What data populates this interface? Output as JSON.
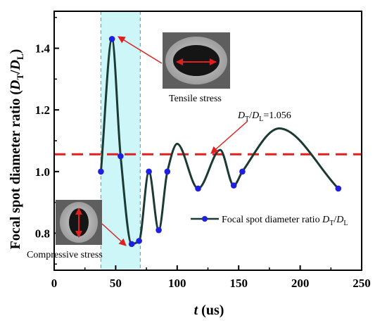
{
  "chart_data": {
    "type": "line",
    "xlabel": {
      "var": "t",
      "unit": " (us)"
    },
    "ylabel": {
      "main": "Focal spot diameter ratio (",
      "var1": "D",
      "sub1": "T",
      "slash": "/",
      "var2": "D",
      "sub2": "L",
      "close": ")"
    },
    "xlim": [
      0,
      250
    ],
    "ylim": [
      0.68,
      1.52
    ],
    "xticks": [
      "0",
      "50",
      "100",
      "150",
      "200",
      "250"
    ],
    "yticks": [
      "0.8",
      "1.0",
      "1.2",
      "1.4"
    ],
    "xtick_values": [
      0,
      50,
      100,
      150,
      200,
      250
    ],
    "ytick_values": [
      0.8,
      1.0,
      1.2,
      1.4
    ],
    "highlight_band": {
      "x_range": [
        38,
        70
      ],
      "color": "#ccf6f8",
      "border": "#6fa8a8"
    },
    "reference_line": {
      "y": 1.056,
      "color": "#e02020",
      "label": {
        "var1": "D",
        "sub1": "T",
        "slash": "/",
        "var2": "D",
        "sub2": "L",
        "value": "=1.056"
      }
    },
    "series": [
      {
        "name": "Focal spot diameter ratio D_T/D_L",
        "legend": {
          "text": "Focal spot diameter ratio ",
          "var1": "D",
          "sub1": "T",
          "slash": "/",
          "var2": "D",
          "sub2": "L"
        },
        "line_color": "#1c3a34",
        "marker_color": "#1f1fe0",
        "points": [
          {
            "x": 38,
            "y": 1.0
          },
          {
            "x": 47,
            "y": 1.43
          },
          {
            "x": 54,
            "y": 1.05
          },
          {
            "x": 63,
            "y": 0.765
          },
          {
            "x": 69,
            "y": 0.775
          },
          {
            "x": 77,
            "y": 1.0
          },
          {
            "x": 85,
            "y": 0.81
          },
          {
            "x": 92,
            "y": 1.0
          },
          {
            "x": 100,
            "y": 1.09
          },
          {
            "x": 117,
            "y": 0.945
          },
          {
            "x": 135,
            "y": 1.07
          },
          {
            "x": 146,
            "y": 0.955
          },
          {
            "x": 153,
            "y": 1.0
          },
          {
            "x": 183,
            "y": 1.14
          },
          {
            "x": 231,
            "y": 0.945
          }
        ],
        "markers": [
          {
            "x": 38,
            "y": 1.0
          },
          {
            "x": 47,
            "y": 1.43
          },
          {
            "x": 54,
            "y": 1.05
          },
          {
            "x": 63,
            "y": 0.765
          },
          {
            "x": 69,
            "y": 0.775
          },
          {
            "x": 77,
            "y": 1.0
          },
          {
            "x": 85,
            "y": 0.81
          },
          {
            "x": 92,
            "y": 1.0
          },
          {
            "x": 117,
            "y": 0.945
          },
          {
            "x": 146,
            "y": 0.955
          },
          {
            "x": 153,
            "y": 1.0
          },
          {
            "x": 231,
            "y": 0.945
          }
        ]
      }
    ],
    "annotations": [
      {
        "id": "tensile",
        "text": "Tensile stress",
        "points_to": {
          "x": 47,
          "y": 1.43
        }
      },
      {
        "id": "compressive",
        "text": "Compressive stress",
        "points_to": {
          "x": 63,
          "y": 0.765
        }
      }
    ],
    "arrow_color": "#e02020",
    "grid": false,
    "legend_position": "center-right"
  }
}
